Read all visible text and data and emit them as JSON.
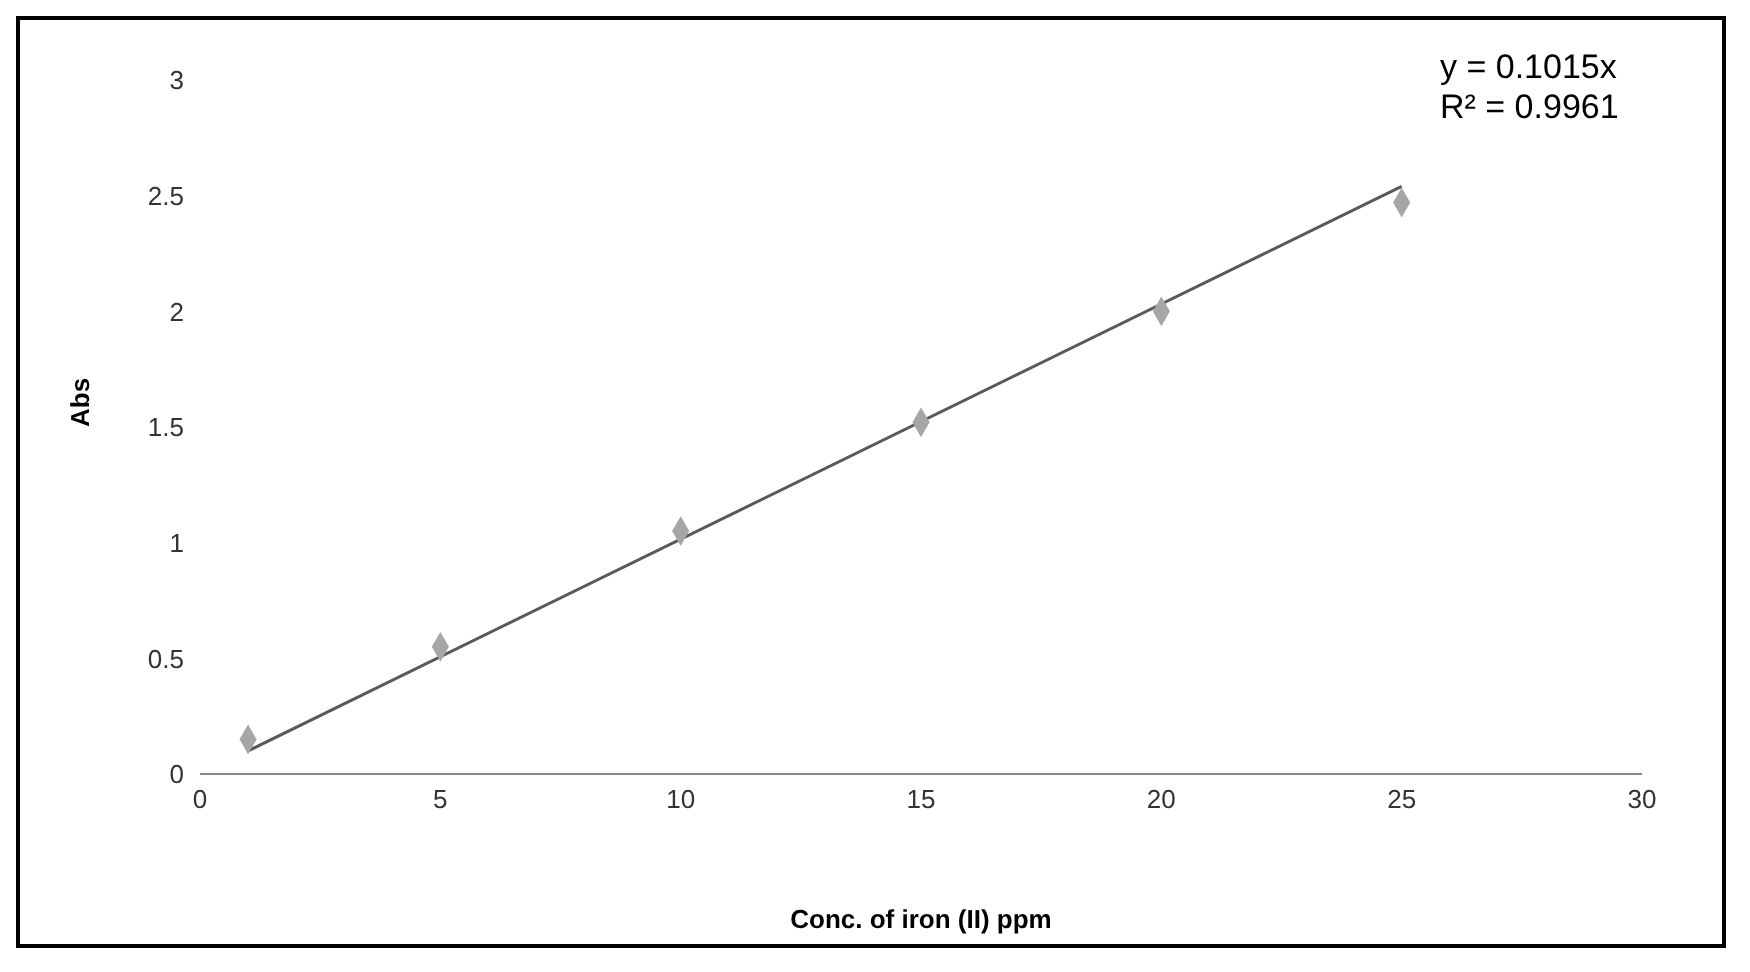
{
  "chart_data": {
    "type": "scatter",
    "xlabel": "Conc. of iron (II) ppm",
    "ylabel": "Abs",
    "series": [
      {
        "color": "#a6a6a6",
        "x": [
          1,
          5,
          10,
          15,
          20,
          25
        ],
        "values": [
          0.15,
          0.55,
          1.05,
          1.52,
          2.0,
          2.47
        ]
      },
      {
        "type": "line",
        "marker": "none",
        "color": "#595959",
        "x": [
          1,
          25
        ],
        "values": [
          0.1,
          2.54
        ]
      }
    ],
    "xlim": [
      0,
      30
    ],
    "xticks": [
      0,
      5,
      10,
      15,
      20,
      25,
      30
    ],
    "ylim": [
      0,
      3
    ],
    "yticks": [
      0,
      0.5,
      1,
      1.5,
      2,
      2.5,
      3
    ],
    "annotations": [
      "y = 0.1015x",
      "R² = 0.9961"
    ],
    "marker": "diamond",
    "legend": false,
    "grid": false
  }
}
